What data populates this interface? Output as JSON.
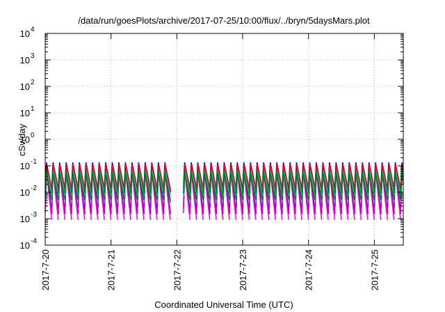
{
  "chart_data": {
    "type": "line",
    "title": "/data/run/goesPlots/archive/2017-07-25/10:00/flux/../bryn/5daysMars.plot",
    "xlabel": "Coordinated Universal Time (UTC)",
    "ylabel": "cSv/day",
    "yscale": "log",
    "ylim": [
      0.0001,
      10000
    ],
    "xlim": [
      0,
      5.44
    ],
    "grid": true,
    "y_ticks": [
      {
        "value": 0.0001,
        "base": "10",
        "exp": "-4"
      },
      {
        "value": 0.001,
        "base": "10",
        "exp": "-3"
      },
      {
        "value": 0.01,
        "base": "10",
        "exp": "-2"
      },
      {
        "value": 0.1,
        "base": "10",
        "exp": "-1"
      },
      {
        "value": 1,
        "base": "10",
        "exp": "0"
      },
      {
        "value": 10,
        "base": "10",
        "exp": "1"
      },
      {
        "value": 100,
        "base": "10",
        "exp": "2"
      },
      {
        "value": 1000,
        "base": "10",
        "exp": "3"
      },
      {
        "value": 10000,
        "base": "10",
        "exp": "4"
      }
    ],
    "x_ticks": [
      {
        "value": 0,
        "label": "2017-7-20"
      },
      {
        "value": 1,
        "label": "2017-7-21"
      },
      {
        "value": 2,
        "label": "2017-7-22"
      },
      {
        "value": 3,
        "label": "2017-7-23"
      },
      {
        "value": 4,
        "label": "2017-7-24"
      },
      {
        "value": 5,
        "label": "2017-7-25"
      }
    ],
    "sawtooth": {
      "period_days": 0.1,
      "phase_start_days": 0.0,
      "gap_days": [
        1.95,
        2.05
      ]
    },
    "series": [
      {
        "color": "#ff00ff",
        "peak": 0.075,
        "trough": 0.0009
      },
      {
        "color": "#b000b0",
        "peak": 0.08,
        "trough": 0.0015
      },
      {
        "color": "#00a0a0",
        "peak": 0.09,
        "trough": 0.004
      },
      {
        "color": "#00c8c8",
        "peak": 0.1,
        "trough": 0.008
      },
      {
        "color": "#0000ff",
        "peak": 0.13,
        "trough": 0.012
      },
      {
        "color": "#ff0000",
        "peak": 0.11,
        "trough": 0.01
      },
      {
        "color": "#008000",
        "peak": 0.06,
        "trough": 0.005
      }
    ]
  }
}
